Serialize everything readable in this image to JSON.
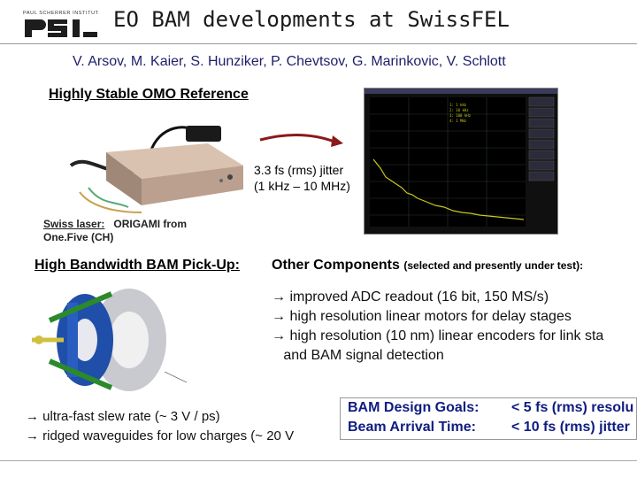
{
  "logo": {
    "top_text": "PAUL SCHERRER INSTITUT",
    "mark": "PSI"
  },
  "title": "EO BAM developments at SwissFEL",
  "authors": "V. Arsov, M. Kaier, S. Hunziker, P. Chevtsov, G. Marinkovic, V. Schlott",
  "omo": {
    "heading": "Highly Stable OMO Reference",
    "jitter_line1": "3.3 fs (rms) jitter",
    "jitter_line2": "(1 kHz – 10 MHz)",
    "laser_label": "Swiss laser:",
    "laser_value": "ORIGAMI from",
    "laser_vendor": "One.Five (CH)"
  },
  "bam": {
    "heading": "High Bandwidth BAM Pick-Up:"
  },
  "other": {
    "heading": "Other Components",
    "note": "(selected and presently under test):",
    "bullets": [
      "→ improved ADC readout (16 bit, 150 MS/s)",
      "→ high resolution linear motors for delay stages",
      "→ high resolution (10 nm) linear encoders for link sta",
      "   and BAM signal detection"
    ]
  },
  "bottom": {
    "line1": "→ ultra-fast slew rate (~ 3 V / ps)",
    "line2": "→ ridged waveguides for low charges (~ 20 V"
  },
  "goals": {
    "label1": "BAM Design Goals:",
    "value1": "< 5 fs (rms) resolu",
    "label2": "Beam Arrival Time:",
    "value2": "< 10 fs (rms) jitter"
  }
}
